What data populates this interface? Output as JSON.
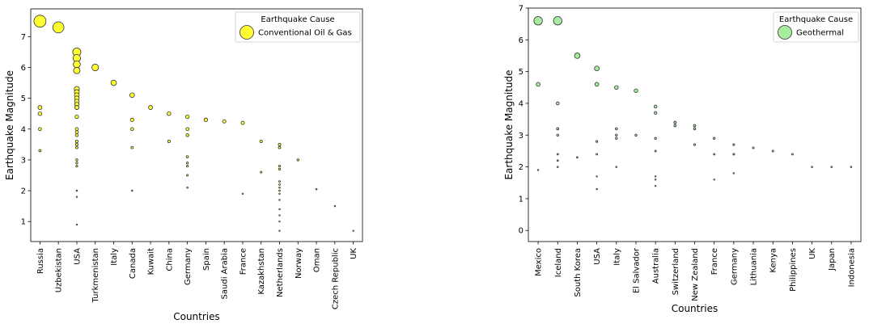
{
  "chart_data": [
    {
      "type": "scatter",
      "xlabel": "Countries",
      "ylabel": "Earthquake Magnitude",
      "ylim": [
        0.35,
        7.9
      ],
      "yticks": [
        1,
        2,
        3,
        4,
        5,
        6,
        7
      ],
      "categories": [
        "Russia",
        "Uzbekistan",
        "USA",
        "Turkmenistan",
        "Italy",
        "Canada",
        "Kuwait",
        "China",
        "Germany",
        "Spain",
        "Saudi Arabia",
        "France",
        "Kazakhstan",
        "Netherlands",
        "Norway",
        "Oman",
        "Czech Republic",
        "UK"
      ],
      "legend": {
        "title": "Earthquake Cause",
        "position": "top-right"
      },
      "series": [
        {
          "name": "Conventional Oil & Gas",
          "color": "#ffff33",
          "points": [
            [
              "Russia",
              7.5
            ],
            [
              "Russia",
              4.7
            ],
            [
              "Russia",
              4.5
            ],
            [
              "Russia",
              4.0
            ],
            [
              "Russia",
              3.3
            ],
            [
              "Uzbekistan",
              7.3
            ],
            [
              "USA",
              6.5
            ],
            [
              "USA",
              6.3
            ],
            [
              "USA",
              6.1
            ],
            [
              "USA",
              5.9
            ],
            [
              "USA",
              5.3
            ],
            [
              "USA",
              5.2
            ],
            [
              "USA",
              5.1
            ],
            [
              "USA",
              5.0
            ],
            [
              "USA",
              4.9
            ],
            [
              "USA",
              4.8
            ],
            [
              "USA",
              4.7
            ],
            [
              "USA",
              4.7
            ],
            [
              "USA",
              4.4
            ],
            [
              "USA",
              4.0
            ],
            [
              "USA",
              3.9
            ],
            [
              "USA",
              3.8
            ],
            [
              "USA",
              3.6
            ],
            [
              "USA",
              3.5
            ],
            [
              "USA",
              3.4
            ],
            [
              "USA",
              3.0
            ],
            [
              "USA",
              2.9
            ],
            [
              "USA",
              2.8
            ],
            [
              "USA",
              2.0
            ],
            [
              "USA",
              1.8
            ],
            [
              "USA",
              0.9
            ],
            [
              "Turkmenistan",
              6.0
            ],
            [
              "Italy",
              5.5
            ],
            [
              "Canada",
              5.1
            ],
            [
              "Canada",
              4.3
            ],
            [
              "Canada",
              4.0
            ],
            [
              "Canada",
              3.4
            ],
            [
              "Canada",
              2.0
            ],
            [
              "Kuwait",
              4.7
            ],
            [
              "China",
              4.5
            ],
            [
              "China",
              3.6
            ],
            [
              "Germany",
              4.4
            ],
            [
              "Germany",
              4.0
            ],
            [
              "Germany",
              3.8
            ],
            [
              "Germany",
              3.8
            ],
            [
              "Germany",
              3.1
            ],
            [
              "Germany",
              2.9
            ],
            [
              "Germany",
              2.8
            ],
            [
              "Germany",
              2.5
            ],
            [
              "Germany",
              2.1
            ],
            [
              "Spain",
              4.3
            ],
            [
              "Spain",
              4.3
            ],
            [
              "Saudi Arabia",
              4.25
            ],
            [
              "France",
              4.2
            ],
            [
              "France",
              1.9
            ],
            [
              "Kazakhstan",
              3.6
            ],
            [
              "Kazakhstan",
              2.6
            ],
            [
              "Netherlands",
              3.5
            ],
            [
              "Netherlands",
              3.4
            ],
            [
              "Netherlands",
              2.8
            ],
            [
              "Netherlands",
              2.7
            ],
            [
              "Netherlands",
              2.3
            ],
            [
              "Netherlands",
              2.2
            ],
            [
              "Netherlands",
              2.1
            ],
            [
              "Netherlands",
              2.0
            ],
            [
              "Netherlands",
              1.9
            ],
            [
              "Netherlands",
              1.7
            ],
            [
              "Netherlands",
              1.4
            ],
            [
              "Netherlands",
              1.2
            ],
            [
              "Netherlands",
              1.0
            ],
            [
              "Netherlands",
              0.7
            ],
            [
              "Norway",
              3.0
            ],
            [
              "Oman",
              2.05
            ],
            [
              "Czech Republic",
              1.5
            ],
            [
              "UK",
              0.7
            ]
          ]
        }
      ]
    },
    {
      "type": "scatter",
      "xlabel": "Countries",
      "ylabel": "Earthquake Magnitude",
      "ylim": [
        -0.35,
        7.0
      ],
      "yticks": [
        0,
        1,
        2,
        3,
        4,
        5,
        6,
        7
      ],
      "categories": [
        "Mexico",
        "Iceland",
        "South Korea",
        "USA",
        "Italy",
        "El Salvador",
        "Australia",
        "Switzerland",
        "New Zealand",
        "France",
        "Germany",
        "Lithuania",
        "Kenya",
        "Philippines",
        "UK",
        "Japan",
        "Indonesia"
      ],
      "legend": {
        "title": "Earthquake Cause",
        "position": "top-right"
      },
      "series": [
        {
          "name": "Geothermal",
          "color": "#a7eca0",
          "points": [
            [
              "Mexico",
              6.6
            ],
            [
              "Mexico",
              4.6
            ],
            [
              "Mexico",
              1.9
            ],
            [
              "Iceland",
              6.6
            ],
            [
              "Iceland",
              4.0
            ],
            [
              "Iceland",
              3.2
            ],
            [
              "Iceland",
              3.2
            ],
            [
              "Iceland",
              3.0
            ],
            [
              "Iceland",
              2.4
            ],
            [
              "Iceland",
              2.2
            ],
            [
              "Iceland",
              2.0
            ],
            [
              "South Korea",
              5.5
            ],
            [
              "South Korea",
              2.3
            ],
            [
              "USA",
              5.1
            ],
            [
              "USA",
              4.6
            ],
            [
              "USA",
              2.8
            ],
            [
              "USA",
              2.4
            ],
            [
              "USA",
              1.7
            ],
            [
              "USA",
              1.3
            ],
            [
              "Italy",
              4.5
            ],
            [
              "Italy",
              3.2
            ],
            [
              "Italy",
              3.0
            ],
            [
              "Italy",
              2.9
            ],
            [
              "Italy",
              2.0
            ],
            [
              "El Salvador",
              4.4
            ],
            [
              "El Salvador",
              3.0
            ],
            [
              "Australia",
              3.9
            ],
            [
              "Australia",
              3.7
            ],
            [
              "Australia",
              2.9
            ],
            [
              "Australia",
              2.5
            ],
            [
              "Australia",
              1.7
            ],
            [
              "Australia",
              1.6
            ],
            [
              "Australia",
              1.4
            ],
            [
              "Switzerland",
              3.4
            ],
            [
              "Switzerland",
              3.3
            ],
            [
              "New Zealand",
              3.3
            ],
            [
              "New Zealand",
              3.2
            ],
            [
              "New Zealand",
              2.7
            ],
            [
              "France",
              2.9
            ],
            [
              "France",
              2.4
            ],
            [
              "France",
              1.6
            ],
            [
              "Germany",
              2.7
            ],
            [
              "Germany",
              2.4
            ],
            [
              "Germany",
              2.4
            ],
            [
              "Germany",
              1.8
            ],
            [
              "Lithuania",
              2.6
            ],
            [
              "Kenya",
              2.5
            ],
            [
              "Philippines",
              2.4
            ],
            [
              "UK",
              2.0
            ],
            [
              "Japan",
              2.0
            ],
            [
              "Indonesia",
              2.0
            ]
          ]
        }
      ]
    }
  ]
}
